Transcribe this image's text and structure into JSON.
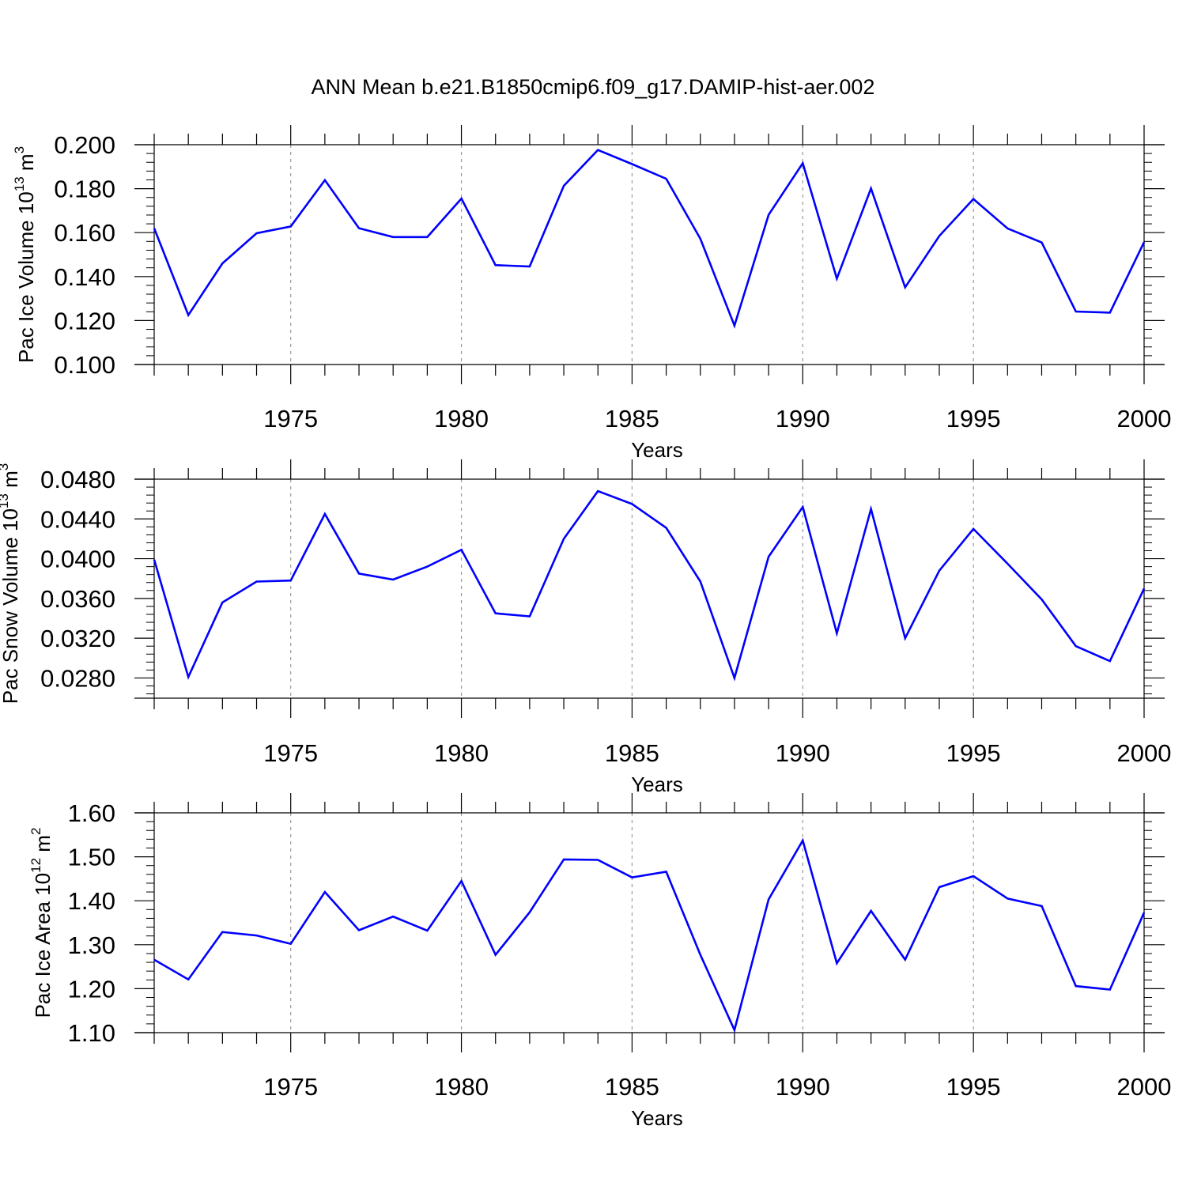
{
  "figure_title": "ANN Mean b.e21.B1850cmip6.f09_g17.DAMIP-hist-aer.002",
  "colors": {
    "line": "#0000ff",
    "axis": "#000000",
    "gridline": "#9a9a9a"
  },
  "chart_data": [
    {
      "type": "line",
      "title": "",
      "xlabel": "Years",
      "ylabel": {
        "text": "Pac Ice Volume 10",
        "exponent": "13",
        "unit": " m",
        "unit_exponent": "3"
      },
      "xlim": [
        1971,
        2000
      ],
      "ylim": [
        0.1,
        0.2
      ],
      "xticks": [
        1975,
        1980,
        1985,
        1990,
        1995,
        2000
      ],
      "xtick_labels": [
        "1975",
        "1980",
        "1985",
        "1990",
        "1995",
        "2000"
      ],
      "yticks": [
        0.1,
        0.12,
        0.14,
        0.16,
        0.18,
        0.2
      ],
      "ytick_labels": [
        "0.100",
        "0.120",
        "0.140",
        "0.160",
        "0.180",
        "0.200"
      ],
      "grid": "dashed vertical at 5-year ticks",
      "series": [
        {
          "name": "Pac Ice Volume",
          "x": [
            1971,
            1972,
            1973,
            1974,
            1975,
            1976,
            1977,
            1978,
            1979,
            1980,
            1981,
            1982,
            1983,
            1984,
            1985,
            1986,
            1987,
            1988,
            1989,
            1990,
            1991,
            1992,
            1993,
            1994,
            1995,
            1996,
            1997,
            1998,
            1999,
            2000
          ],
          "values": [
            0.162,
            0.1225,
            0.146,
            0.1597,
            0.1628,
            0.1839,
            0.162,
            0.158,
            0.158,
            0.1755,
            0.1452,
            0.1446,
            0.1813,
            0.1976,
            0.1912,
            0.1845,
            0.1572,
            0.1177,
            0.1681,
            0.1916,
            0.1391,
            0.1801,
            0.1351,
            0.1585,
            0.1753,
            0.1619,
            0.1555,
            0.1241,
            0.1236,
            0.1557
          ]
        }
      ]
    },
    {
      "type": "line",
      "title": "",
      "xlabel": "Years",
      "ylabel": {
        "text": "Pac Snow Volume 10",
        "exponent": "13",
        "unit": " m",
        "unit_exponent": "3"
      },
      "xlim": [
        1971,
        2000
      ],
      "ylim": [
        0.027,
        0.048
      ],
      "xticks": [
        1975,
        1980,
        1985,
        1990,
        1995,
        2000
      ],
      "xtick_labels": [
        "1975",
        "1980",
        "1985",
        "1990",
        "1995",
        "2000"
      ],
      "yticks": [
        0.028,
        0.032,
        0.036,
        0.04,
        0.044,
        0.048
      ],
      "ytick_labels": [
        "0.0280",
        "0.0320",
        "0.0360",
        "0.0400",
        "0.0440",
        "0.0480"
      ],
      "grid": "dashed vertical at 5-year ticks",
      "series": [
        {
          "name": "Pac Snow Volume",
          "x": [
            1971,
            1972,
            1973,
            1974,
            1975,
            1976,
            1977,
            1978,
            1979,
            1980,
            1981,
            1982,
            1983,
            1984,
            1985,
            1986,
            1987,
            1988,
            1989,
            1990,
            1991,
            1992,
            1993,
            1994,
            1995,
            1996,
            1997,
            1998,
            1999,
            2000
          ],
          "values": [
            0.0399,
            0.0281,
            0.0356,
            0.0377,
            0.0378,
            0.0445,
            0.0385,
            0.0379,
            0.0392,
            0.0409,
            0.0345,
            0.0342,
            0.042,
            0.0468,
            0.0455,
            0.0431,
            0.0377,
            0.028,
            0.0402,
            0.0452,
            0.0325,
            0.045,
            0.032,
            0.0388,
            0.043,
            0.0395,
            0.0359,
            0.0312,
            0.0297,
            0.037
          ]
        }
      ]
    },
    {
      "type": "line",
      "title": "",
      "xlabel": "Years",
      "ylabel": {
        "text": "Pac Ice Area 10",
        "exponent": "12",
        "unit": " m",
        "unit_exponent": "2"
      },
      "xlim": [
        1971,
        2000
      ],
      "ylim": [
        1.1,
        1.6
      ],
      "xticks": [
        1975,
        1980,
        1985,
        1990,
        1995,
        2000
      ],
      "xtick_labels": [
        "1975",
        "1980",
        "1985",
        "1990",
        "1995",
        "2000"
      ],
      "yticks": [
        1.1,
        1.2,
        1.3,
        1.4,
        1.5,
        1.6
      ],
      "ytick_labels": [
        "1.10",
        "1.20",
        "1.30",
        "1.40",
        "1.50",
        "1.60"
      ],
      "grid": "dashed vertical at 5-year ticks",
      "series": [
        {
          "name": "Pac Ice Area",
          "x": [
            1971,
            1972,
            1973,
            1974,
            1975,
            1976,
            1977,
            1978,
            1979,
            1980,
            1981,
            1982,
            1983,
            1984,
            1985,
            1986,
            1987,
            1988,
            1989,
            1990,
            1991,
            1992,
            1993,
            1994,
            1995,
            1996,
            1997,
            1998,
            1999,
            2000
          ],
          "values": [
            1.266,
            1.221,
            1.329,
            1.321,
            1.302,
            1.42,
            1.333,
            1.364,
            1.332,
            1.445,
            1.277,
            1.374,
            1.494,
            1.493,
            1.453,
            1.466,
            1.277,
            1.106,
            1.403,
            1.537,
            1.258,
            1.377,
            1.266,
            1.431,
            1.456,
            1.405,
            1.388,
            1.206,
            1.198,
            1.373
          ]
        }
      ]
    }
  ]
}
